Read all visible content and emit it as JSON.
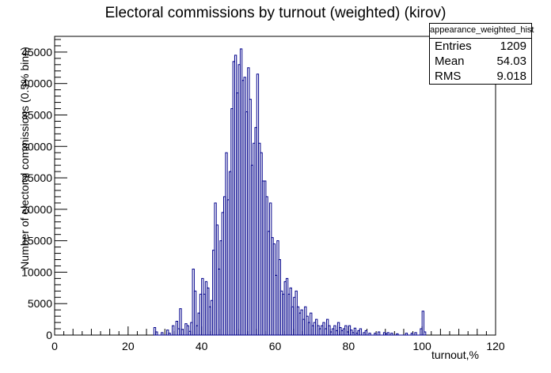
{
  "chart_data": {
    "type": "histogram",
    "title": "Electoral commissions by turnout (weighted) (kirov)",
    "xlabel": "turnout,%",
    "ylabel": "Number of electoral commissions (0.5% bins)",
    "xlim": [
      0,
      120
    ],
    "ylim": [
      0,
      47500
    ],
    "x_ticks": [
      0,
      20,
      40,
      60,
      80,
      100,
      120
    ],
    "y_ticks": [
      0,
      5000,
      10000,
      15000,
      20000,
      25000,
      30000,
      35000,
      40000,
      45000
    ],
    "bin_width": 0.5,
    "line_color": "#00008b",
    "bins": [
      [
        27.0,
        1200
      ],
      [
        27.5,
        500
      ],
      [
        29.0,
        400
      ],
      [
        30.5,
        800
      ],
      [
        31.0,
        300
      ],
      [
        32.0,
        1500
      ],
      [
        33.0,
        2200
      ],
      [
        33.5,
        1000
      ],
      [
        34.0,
        4200
      ],
      [
        34.5,
        900
      ],
      [
        35.5,
        1800
      ],
      [
        36.0,
        1500
      ],
      [
        36.5,
        600
      ],
      [
        37.0,
        2000
      ],
      [
        37.5,
        10500
      ],
      [
        38.0,
        7000
      ],
      [
        38.5,
        1500
      ],
      [
        39.0,
        3500
      ],
      [
        39.5,
        6500
      ],
      [
        40.0,
        9000
      ],
      [
        40.5,
        6500
      ],
      [
        41.0,
        8500
      ],
      [
        41.5,
        7500
      ],
      [
        42.0,
        4500
      ],
      [
        42.5,
        5500
      ],
      [
        43.0,
        13500
      ],
      [
        43.5,
        21000
      ],
      [
        44.0,
        17500
      ],
      [
        44.5,
        10500
      ],
      [
        45.0,
        15000
      ],
      [
        45.5,
        19500
      ],
      [
        46.0,
        22000
      ],
      [
        46.5,
        29000
      ],
      [
        47.0,
        21500
      ],
      [
        47.5,
        26000
      ],
      [
        48.0,
        36000
      ],
      [
        48.5,
        43500
      ],
      [
        49.0,
        44500
      ],
      [
        49.5,
        38500
      ],
      [
        50.0,
        43000
      ],
      [
        50.5,
        45500
      ],
      [
        51.0,
        40500
      ],
      [
        51.5,
        41000
      ],
      [
        52.0,
        35500
      ],
      [
        52.5,
        42500
      ],
      [
        53.0,
        37500
      ],
      [
        53.5,
        27000
      ],
      [
        54.0,
        30500
      ],
      [
        54.5,
        33000
      ],
      [
        55.0,
        41500
      ],
      [
        55.5,
        30500
      ],
      [
        56.0,
        29000
      ],
      [
        56.5,
        24500
      ],
      [
        57.0,
        24500
      ],
      [
        57.5,
        22000
      ],
      [
        58.0,
        16500
      ],
      [
        58.5,
        21000
      ],
      [
        59.0,
        15500
      ],
      [
        59.5,
        14500
      ],
      [
        60.0,
        9500
      ],
      [
        60.5,
        15000
      ],
      [
        61.0,
        12000
      ],
      [
        61.5,
        7000
      ],
      [
        62.0,
        6500
      ],
      [
        62.5,
        8500
      ],
      [
        63.0,
        9000
      ],
      [
        63.5,
        6500
      ],
      [
        64.0,
        7500
      ],
      [
        64.5,
        4500
      ],
      [
        65.0,
        6000
      ],
      [
        65.5,
        7000
      ],
      [
        66.0,
        4500
      ],
      [
        66.5,
        3500
      ],
      [
        67.0,
        4000
      ],
      [
        67.5,
        2500
      ],
      [
        68.0,
        4500
      ],
      [
        68.5,
        3000
      ],
      [
        69.0,
        2000
      ],
      [
        69.5,
        3500
      ],
      [
        70.0,
        1500
      ],
      [
        70.5,
        2000
      ],
      [
        71.0,
        2500
      ],
      [
        71.5,
        1500
      ],
      [
        72.0,
        1000
      ],
      [
        72.5,
        1500
      ],
      [
        73.0,
        2000
      ],
      [
        73.5,
        1000
      ],
      [
        74.0,
        2500
      ],
      [
        74.5,
        1500
      ],
      [
        75.0,
        500
      ],
      [
        75.5,
        1000
      ],
      [
        76.0,
        1500
      ],
      [
        76.5,
        700
      ],
      [
        77.0,
        2000
      ],
      [
        77.5,
        1200
      ],
      [
        78.0,
        700
      ],
      [
        78.5,
        1000
      ],
      [
        79.0,
        1500
      ],
      [
        79.5,
        500
      ],
      [
        80.0,
        1500
      ],
      [
        80.5,
        800
      ],
      [
        81.0,
        400
      ],
      [
        81.5,
        1100
      ],
      [
        82.0,
        300
      ],
      [
        82.5,
        700
      ],
      [
        83.0,
        1000
      ],
      [
        84.0,
        400
      ],
      [
        84.5,
        700
      ],
      [
        85.5,
        300
      ],
      [
        87.0,
        300
      ],
      [
        88.0,
        500
      ],
      [
        89.5,
        400
      ],
      [
        90.0,
        200
      ],
      [
        90.5,
        400
      ],
      [
        91.5,
        300
      ],
      [
        93.0,
        200
      ],
      [
        95.5,
        300
      ],
      [
        97.0,
        300
      ],
      [
        98.0,
        400
      ],
      [
        99.5,
        1000
      ],
      [
        100.0,
        3800
      ],
      [
        100.5,
        500
      ]
    ]
  },
  "stats_box": {
    "name": "appearance_weighted_hist",
    "entries_label": "Entries",
    "entries_value": "1209",
    "mean_label": "Mean",
    "mean_value": "54.03",
    "rms_label": "RMS",
    "rms_value": "9.018"
  }
}
